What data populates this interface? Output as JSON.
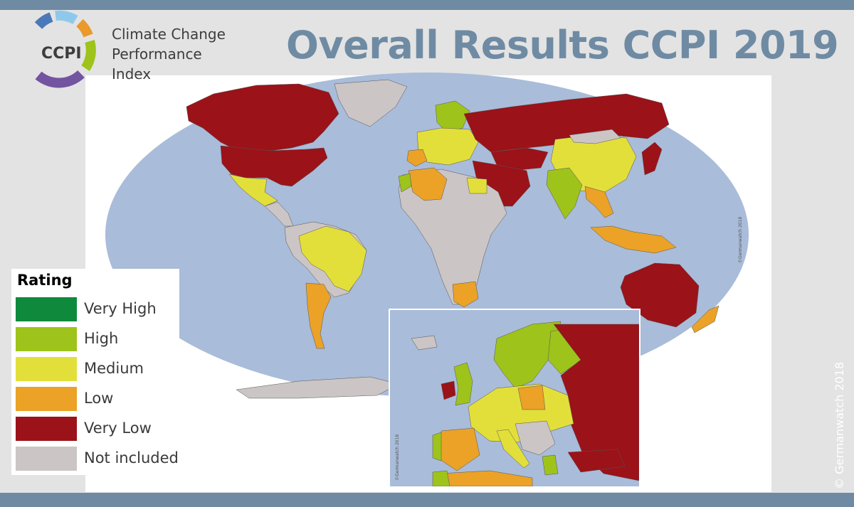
{
  "header": {
    "logo_text": "CCPI",
    "logo_lines": [
      "Climate Change",
      "Performance",
      "Index"
    ],
    "title": "Overall Results CCPI 2019"
  },
  "legend": {
    "title": "Rating",
    "items": [
      {
        "label": "Very High",
        "color": "#0f8a3c"
      },
      {
        "label": "High",
        "color": "#9ec31b"
      },
      {
        "label": "Medium",
        "color": "#e3df3a"
      },
      {
        "label": "Low",
        "color": "#eba227"
      },
      {
        "label": "Very Low",
        "color": "#9b1219"
      },
      {
        "label": "Not included",
        "color": "#cbc5c5"
      }
    ]
  },
  "map_credit": "©Germanwatch 2018",
  "inset_credit": "©Germanwatch 2018",
  "side_credit": "© Germanwatch 2018",
  "colors": {
    "ocean": "#a9bcd9",
    "bar": "#6f8ba4",
    "not_included": "#cbc5c5",
    "very_low": "#9b1219",
    "low": "#eba227",
    "medium": "#e3df3a",
    "high": "#9ec31b"
  }
}
